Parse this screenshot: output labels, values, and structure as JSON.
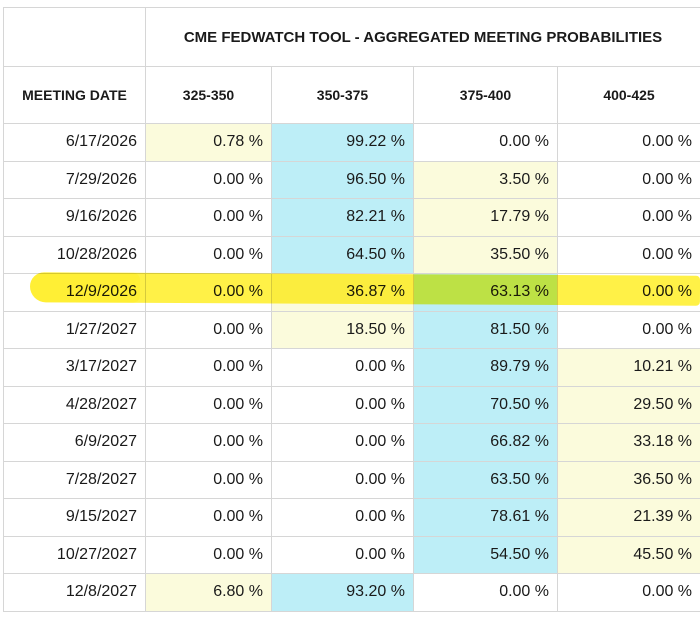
{
  "title": "CME FEDWATCH TOOL - AGGREGATED MEETING PROBABILITIES",
  "headers": {
    "meeting_date": "MEETING DATE",
    "ranges": [
      "325-350",
      "350-375",
      "375-400",
      "400-425"
    ]
  },
  "colors": {
    "header_bg": "#f3f3f3",
    "pale_yellow_cell": "#fbfbdc",
    "cyan_cell": "#bdeef7",
    "highlighter": "#ffec00"
  },
  "highlighted_row": "12/9/2026",
  "rows": [
    {
      "date": "6/17/2026",
      "values": [
        "0.78 %",
        "99.22 %",
        "0.00 %",
        "0.00 %"
      ]
    },
    {
      "date": "7/29/2026",
      "values": [
        "0.00 %",
        "96.50 %",
        "3.50 %",
        "0.00 %"
      ]
    },
    {
      "date": "9/16/2026",
      "values": [
        "0.00 %",
        "82.21 %",
        "17.79 %",
        "0.00 %"
      ]
    },
    {
      "date": "10/28/2026",
      "values": [
        "0.00 %",
        "64.50 %",
        "35.50 %",
        "0.00 %"
      ]
    },
    {
      "date": "12/9/2026",
      "values": [
        "0.00 %",
        "36.87 %",
        "63.13 %",
        "0.00 %"
      ]
    },
    {
      "date": "1/27/2027",
      "values": [
        "0.00 %",
        "18.50 %",
        "81.50 %",
        "0.00 %"
      ]
    },
    {
      "date": "3/17/2027",
      "values": [
        "0.00 %",
        "0.00 %",
        "89.79 %",
        "10.21 %"
      ]
    },
    {
      "date": "4/28/2027",
      "values": [
        "0.00 %",
        "0.00 %",
        "70.50 %",
        "29.50 %"
      ]
    },
    {
      "date": "6/9/2027",
      "values": [
        "0.00 %",
        "0.00 %",
        "66.82 %",
        "33.18 %"
      ]
    },
    {
      "date": "7/28/2027",
      "values": [
        "0.00 %",
        "0.00 %",
        "63.50 %",
        "36.50 %"
      ]
    },
    {
      "date": "9/15/2027",
      "values": [
        "0.00 %",
        "0.00 %",
        "78.61 %",
        "21.39 %"
      ]
    },
    {
      "date": "10/27/2027",
      "values": [
        "0.00 %",
        "0.00 %",
        "54.50 %",
        "45.50 %"
      ]
    },
    {
      "date": "12/8/2027",
      "values": [
        "6.80 %",
        "93.20 %",
        "0.00 %",
        "0.00 %"
      ]
    }
  ]
}
